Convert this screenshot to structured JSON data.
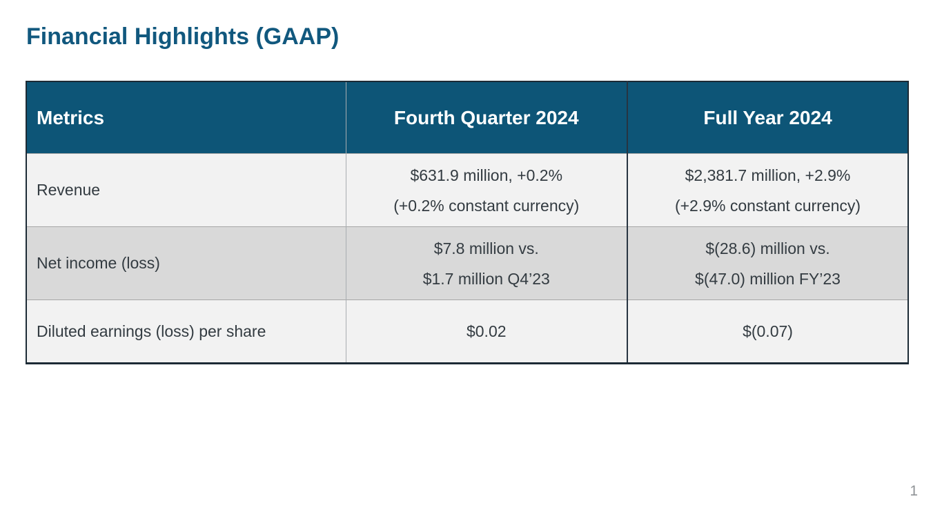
{
  "slide": {
    "title": "Financial Highlights (GAAP)",
    "page_number": "1"
  },
  "colors": {
    "title_text": "#11587e",
    "header_background": "#0d5577",
    "header_text": "#ffffff",
    "row_light_background": "#f2f2f2",
    "row_mid_background": "#d9d9d9",
    "body_text": "#333b41",
    "outer_border": "#1c2a35",
    "grid_line": "#a6a6a6",
    "page_number_text": "#8f9396"
  },
  "table": {
    "headers": {
      "metrics": "Metrics",
      "q4": "Fourth Quarter 2024",
      "fy": "Full Year 2024"
    },
    "rows": [
      {
        "metric": "Revenue",
        "q4_line1": "$631.9 million, +0.2%",
        "q4_line2": "(+0.2% constant currency)",
        "fy_line1": "$2,381.7 million, +2.9%",
        "fy_line2": "(+2.9% constant currency)"
      },
      {
        "metric": "Net income (loss)",
        "q4_line1": "$7.8 million vs.",
        "q4_line2": "$1.7 million Q4’23",
        "fy_line1": "$(28.6) million vs.",
        "fy_line2": "$(47.0) million FY’23"
      },
      {
        "metric": "Diluted earnings (loss) per share",
        "q4_line1": "$0.02",
        "fy_line1": "$(0.07)"
      }
    ]
  }
}
